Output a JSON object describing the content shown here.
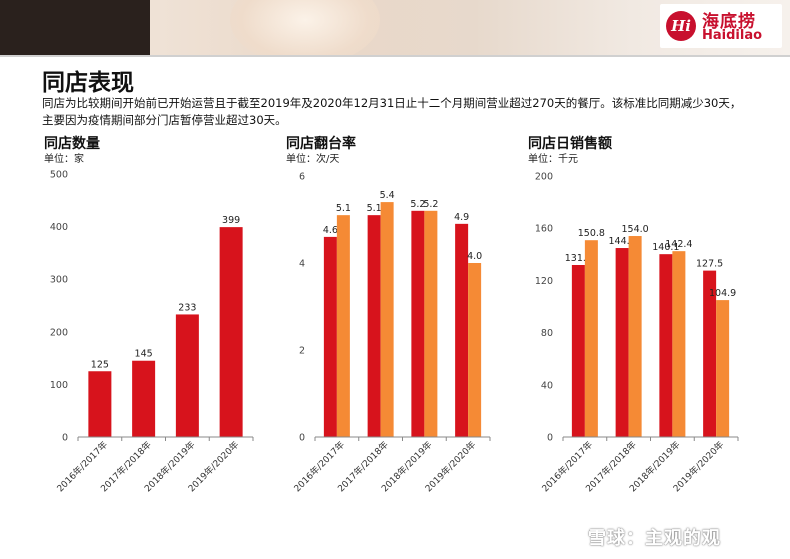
{
  "brand": {
    "logo_mark": "Hi",
    "name_cn": "海底捞",
    "name_en": "Haidilao"
  },
  "page": {
    "title": "同店表现",
    "description": [
      "同店为比较期间开始前已开始运营且于截至2019年及2020年12月31日止十二个月期间营业超过270天的餐厅。该标准比同期减少30天，",
      "主要因为疫情期间部分门店暂停营业超过30天。"
    ]
  },
  "colors": {
    "primary": "#d7131c",
    "secondary": "#f58a35",
    "brand": "#c8102e"
  },
  "chart_data": [
    {
      "type": "bar",
      "title": "同店数量",
      "unit": "单位：家",
      "categories": [
        "2016年/2017年",
        "2017年/2018年",
        "2018年/2019年",
        "2019年/2020年"
      ],
      "series": [
        {
          "values": [
            125,
            145,
            233,
            399
          ],
          "labels": [
            "125",
            "145",
            "233",
            "399"
          ]
        }
      ],
      "ylim": [
        0,
        500
      ],
      "yticks": [
        0,
        100,
        200,
        300,
        400,
        500
      ],
      "grid": false
    },
    {
      "type": "bar",
      "title": "同店翻台率",
      "unit": "单位：次/天",
      "categories": [
        "2016年/2017年",
        "2017年/2018年",
        "2018年/2019年",
        "2019年/2020年"
      ],
      "series": [
        {
          "values": [
            4.6,
            5.1,
            5.2,
            4.9
          ],
          "labels": [
            "4.6",
            "5.1",
            "5.2",
            "4.9"
          ]
        },
        {
          "values": [
            5.1,
            5.4,
            5.2,
            4.0
          ],
          "labels": [
            "5.1",
            "5.4",
            "5.2",
            "4.0"
          ]
        }
      ],
      "ylim": [
        0,
        6
      ],
      "yticks": [
        0,
        2,
        4,
        6
      ],
      "grid": false
    },
    {
      "type": "bar",
      "title": "同店日销售额",
      "unit": "单位：千元",
      "categories": [
        "2016年/2017年",
        "2017年/2018年",
        "2018年/2019年",
        "2019年/2020年"
      ],
      "series": [
        {
          "values": [
            131.8,
            144.8,
            140.1,
            127.5
          ],
          "labels": [
            "131.8",
            "144.8",
            "140.1",
            "127.5"
          ]
        },
        {
          "values": [
            150.8,
            154.0,
            142.4,
            104.9
          ],
          "labels": [
            "150.8",
            "154.0",
            "142.4",
            "104.9"
          ]
        }
      ],
      "ylim": [
        0,
        200
      ],
      "yticks": [
        0,
        40,
        80,
        120,
        160,
        200
      ],
      "grid": false
    }
  ],
  "watermark": "雪球：主观的观"
}
